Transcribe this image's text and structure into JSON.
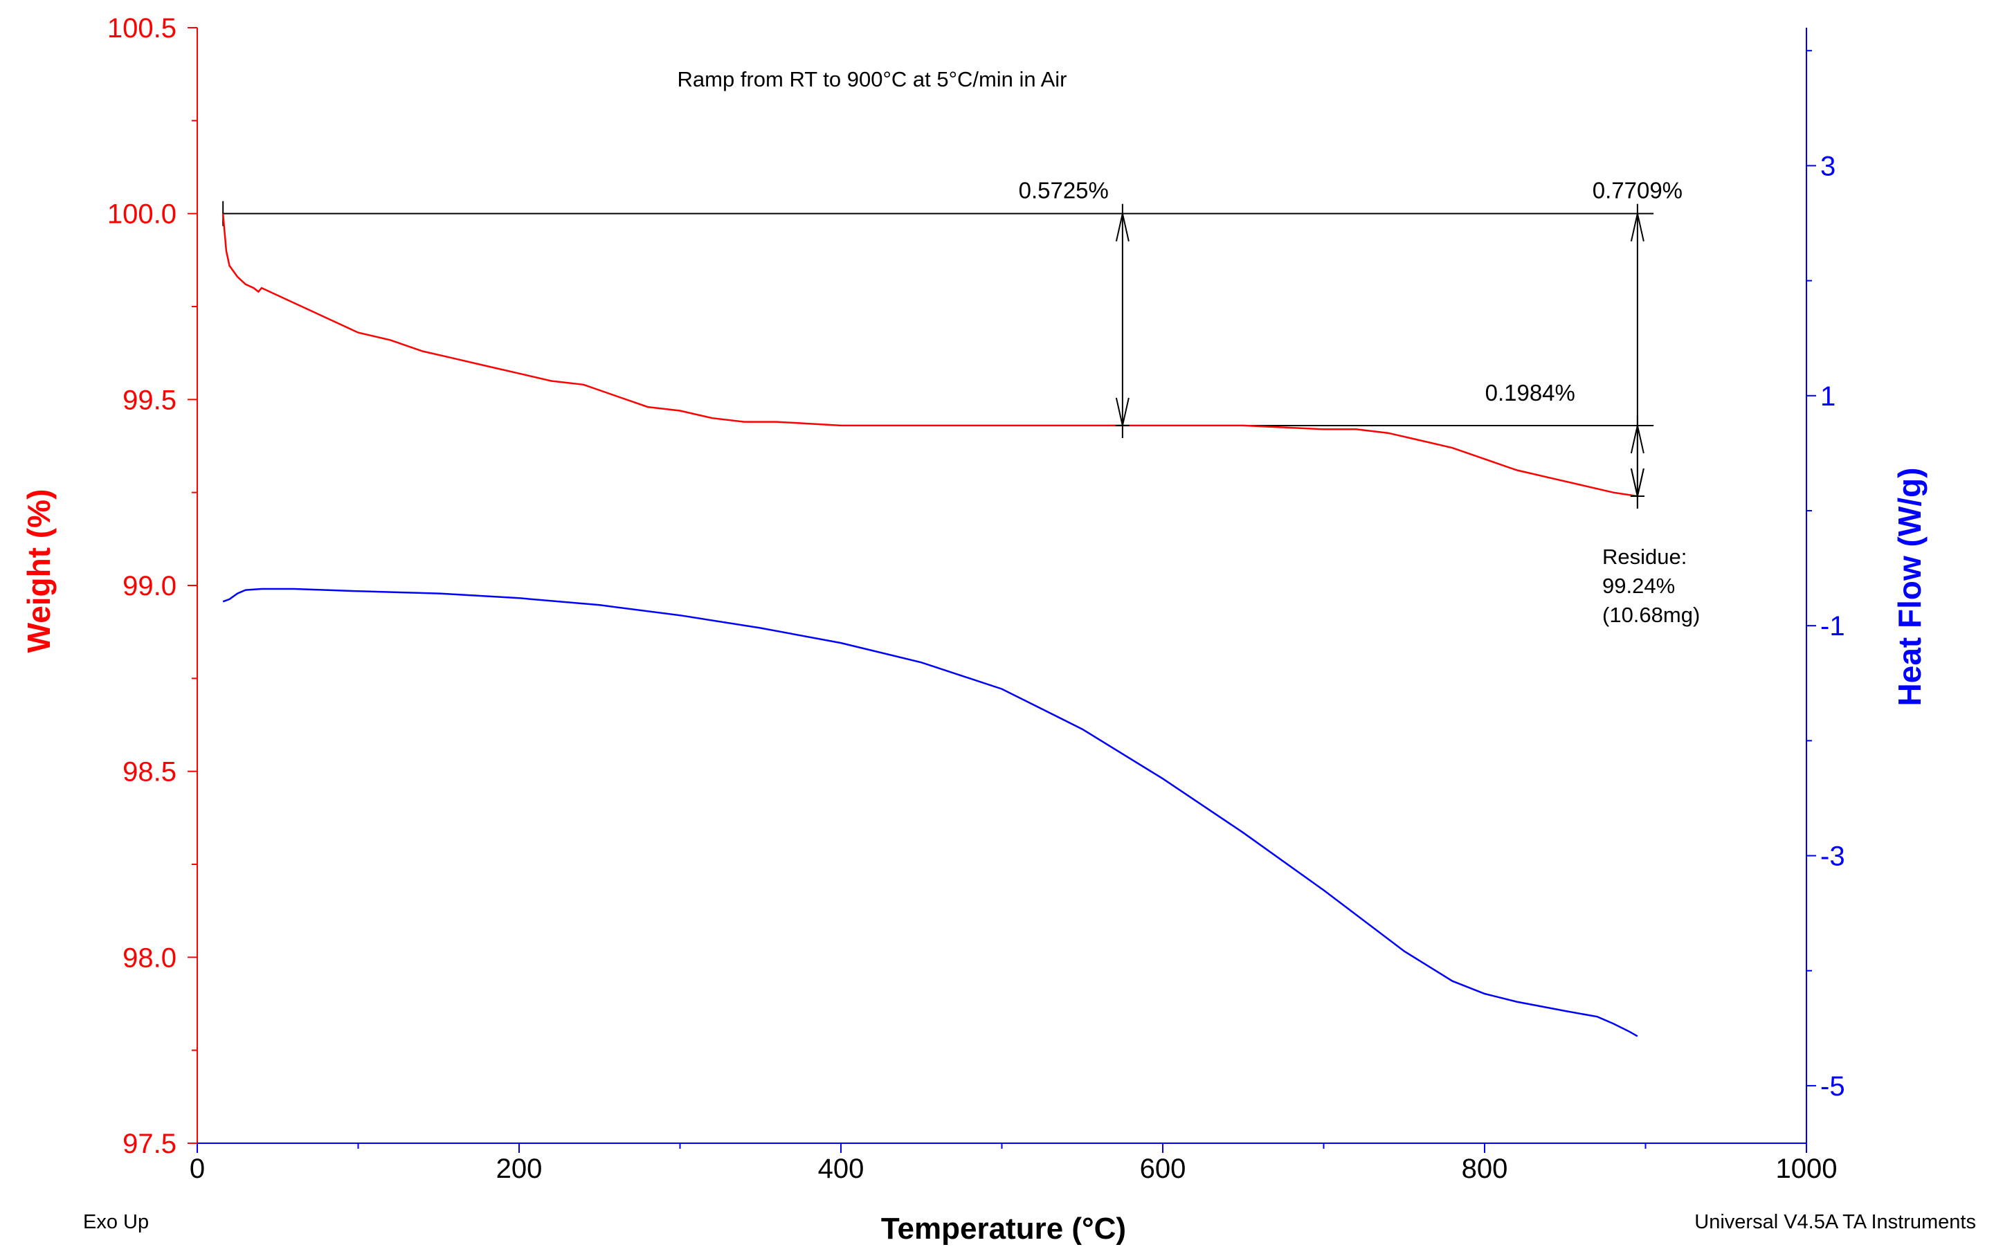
{
  "chart_data": {
    "type": "line",
    "title": "Ramp from RT to 900°C at 5°C/min in Air",
    "xlabel": "Temperature (°C)",
    "xlim": [
      0,
      1000
    ],
    "x_ticks": [
      "0",
      "200",
      "400",
      "600",
      "800",
      "1000"
    ],
    "y_left": {
      "label": "Weight (%)",
      "color": "#ff0000",
      "ylim": [
        97.5,
        100.5
      ],
      "ticks": [
        "97.5",
        "98.0",
        "98.5",
        "99.0",
        "99.5",
        "100.0",
        "100.5"
      ]
    },
    "y_right": {
      "label": "Heat Flow (W/g)",
      "color": "#0000ff",
      "ylim": [
        -5.5,
        4.2
      ],
      "ticks": [
        "-5",
        "-3",
        "-1",
        "1",
        "3"
      ]
    },
    "series": [
      {
        "name": "Weight",
        "axis": "left",
        "color": "#ff0000",
        "x": [
          16,
          17,
          18,
          20,
          25,
          30,
          35,
          38,
          40,
          45,
          50,
          60,
          70,
          80,
          90,
          100,
          120,
          140,
          160,
          180,
          200,
          220,
          240,
          260,
          280,
          300,
          320,
          340,
          360,
          400,
          450,
          500,
          550,
          575,
          600,
          650,
          700,
          720,
          740,
          760,
          780,
          800,
          820,
          840,
          860,
          880,
          895
        ],
        "values": [
          100.0,
          99.95,
          99.9,
          99.86,
          99.83,
          99.81,
          99.8,
          99.79,
          99.8,
          99.79,
          99.78,
          99.76,
          99.74,
          99.72,
          99.7,
          99.68,
          99.66,
          99.63,
          99.61,
          99.59,
          99.57,
          99.55,
          99.54,
          99.51,
          99.48,
          99.47,
          99.45,
          99.44,
          99.44,
          99.43,
          99.43,
          99.43,
          99.43,
          99.43,
          99.43,
          99.43,
          99.42,
          99.42,
          99.41,
          99.39,
          99.37,
          99.34,
          99.31,
          99.29,
          99.27,
          99.25,
          99.24
        ]
      },
      {
        "name": "Heat Flow",
        "axis": "right",
        "color": "#0000ff",
        "x": [
          16,
          20,
          25,
          30,
          40,
          50,
          60,
          80,
          100,
          150,
          200,
          250,
          300,
          350,
          400,
          450,
          500,
          550,
          600,
          650,
          700,
          750,
          780,
          800,
          820,
          850,
          870,
          880,
          890,
          895
        ],
        "values": [
          -0.79,
          -0.77,
          -0.72,
          -0.69,
          -0.68,
          -0.68,
          -0.68,
          -0.69,
          -0.7,
          -0.72,
          -0.76,
          -0.82,
          -0.91,
          -1.02,
          -1.15,
          -1.32,
          -1.55,
          -1.9,
          -2.33,
          -2.8,
          -3.3,
          -3.83,
          -4.09,
          -4.2,
          -4.27,
          -4.35,
          -4.4,
          -4.46,
          -4.53,
          -4.57
        ]
      }
    ],
    "annotations": [
      {
        "label": "0.5725%",
        "x": 575,
        "from": 100.0,
        "to": 99.43
      },
      {
        "label": "0.7709%",
        "x": 895,
        "from": 100.0,
        "to": 99.24
      },
      {
        "label": "0.1984%",
        "x": 895,
        "from": 99.43,
        "to": 99.24
      }
    ],
    "residue": {
      "line1": "Residue:",
      "line2": "99.24%",
      "line3": "(10.68mg)"
    },
    "reference_lines": [
      {
        "value": 100.0,
        "x_start": 16,
        "x_end": 905
      },
      {
        "value": 99.43,
        "x_start": 570,
        "x_end": 905
      }
    ],
    "footer_left": "Exo Up",
    "footer_right": "Universal V4.5A TA Instruments"
  }
}
